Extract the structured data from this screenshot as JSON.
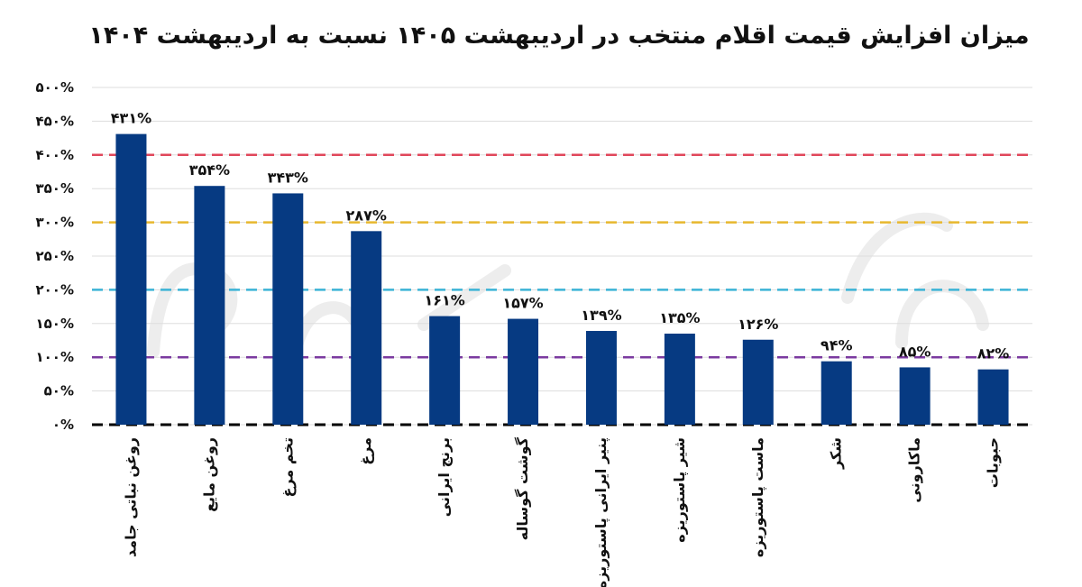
{
  "chart_data": {
    "type": "bar",
    "title": "میزان افزایش قیمت اقلام منتخب در اردیبهشت ۱۴۰۵ نسبت به اردیبهشت ۱۴۰۴",
    "xlabel": "",
    "ylabel": "",
    "categories": [
      "روغن نباتی جامد",
      "روغن مایع",
      "تخم مرغ",
      "مرغ",
      "برنج ایرانی",
      "گوشت گوساله",
      "پنیر ایرانی پاستوریزه",
      "شیر پاستوریزه",
      "ماست پاستوریزه",
      "شکر",
      "ماکارونی",
      "حبوبات"
    ],
    "values": [
      431,
      354,
      343,
      287,
      161,
      157,
      139,
      135,
      126,
      94,
      85,
      82
    ],
    "value_labels": [
      "۴۳۱%",
      "۳۵۴%",
      "۳۴۳%",
      "۲۸۷%",
      "۱۶۱%",
      "۱۵۷%",
      "۱۳۹%",
      "۱۳۵%",
      "۱۲۶%",
      "۹۴%",
      "۸۵%",
      "۸۲%"
    ],
    "ylim": [
      0,
      500
    ],
    "yticks": [
      0,
      50,
      100,
      150,
      200,
      250,
      300,
      350,
      400,
      450,
      500
    ],
    "ytick_labels": [
      "۰%",
      "۵۰%",
      "۱۰۰%",
      "۱۵۰%",
      "۲۰۰%",
      "۲۵۰%",
      "۳۰۰%",
      "۳۵۰%",
      "۴۰۰%",
      "۴۵۰%",
      "۵۰۰%"
    ],
    "grid": true,
    "bar_color": "#063a82",
    "reference_lines": [
      {
        "value": 0,
        "color": "#000000"
      },
      {
        "value": 100,
        "color": "#7b3aa0"
      },
      {
        "value": 200,
        "color": "#3bb3d6"
      },
      {
        "value": 300,
        "color": "#e8b82e"
      },
      {
        "value": 400,
        "color": "#e0475b"
      }
    ]
  }
}
